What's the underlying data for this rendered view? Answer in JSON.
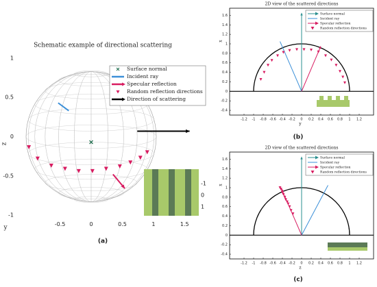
{
  "chart_data": [
    {
      "type": "scatter",
      "title": "Schematic example of directional scattering",
      "xlabel": "y",
      "ylabel": "z",
      "caption": "(a)",
      "xlim": [
        -1.2,
        1.75
      ],
      "ylim": [
        -1.1,
        1.1
      ],
      "xticks": [
        -0.5,
        0,
        0.5,
        1,
        1.5
      ],
      "yticks": [
        -1,
        -0.5,
        0,
        0.5,
        1
      ],
      "inset_ticks": [
        -1,
        0,
        1
      ],
      "series": [
        {
          "name": "Surface normal",
          "color": "#1a6b4a",
          "marker": "x",
          "x": [
            0
          ],
          "values": [
            -0.07
          ]
        },
        {
          "name": "Incident ray",
          "color": "#3a8fd8",
          "marker": "line",
          "x": [
            -0.53,
            -0.36
          ],
          "values": [
            0.43,
            0.33
          ]
        },
        {
          "name": "Specular reflection",
          "color": "#d81b60",
          "marker": "arrow",
          "x": [
            0.35,
            0.54
          ],
          "values": [
            -0.48,
            -0.66
          ]
        },
        {
          "name": "Random reflection directions",
          "color": "#d81b60",
          "marker": "triangle",
          "x": [
            -1.0,
            -0.86,
            -0.64,
            -0.42,
            -0.2,
            0.02,
            0.24,
            0.46,
            0.63,
            0.79,
            0.9
          ],
          "values": [
            -0.135,
            -0.28,
            -0.37,
            -0.41,
            -0.44,
            -0.44,
            -0.41,
            -0.38,
            -0.33,
            -0.27,
            -0.2
          ]
        },
        {
          "name": "Direction of scattering",
          "color": "#000000",
          "marker": "arrow",
          "x": [
            0.74,
            1.58
          ],
          "values": [
            0.07,
            0.07
          ]
        }
      ]
    },
    {
      "type": "scatter",
      "title": "2D view of the scattered directions",
      "xlabel": "y",
      "ylabel": "x",
      "caption": "(b)",
      "xlim": [
        -1.5,
        1.5
      ],
      "ylim": [
        -0.5,
        1.75
      ],
      "arc_radius": 1,
      "xticks": [
        -1.2,
        -1,
        -0.8,
        -0.6,
        -0.4,
        -0.2,
        0,
        0.2,
        0.4,
        0.6,
        0.8,
        1,
        1.2
      ],
      "yticks": [
        -0.4,
        -0.2,
        0,
        0.2,
        0.4,
        0.6,
        0.8,
        1,
        1.2,
        1.4,
        1.6
      ],
      "series": [
        {
          "name": "Surface normal",
          "color": "#2a8f8f",
          "marker": "arrow",
          "x": [
            0,
            0
          ],
          "values": [
            0,
            1.65
          ]
        },
        {
          "name": "Incident ray",
          "color": "#3a8fd8",
          "marker": "line",
          "x": [
            0,
            -0.45
          ],
          "values": [
            0,
            1.05
          ]
        },
        {
          "name": "Specular reflection",
          "color": "#d81b60",
          "marker": "arrow",
          "x": [
            0,
            0.4
          ],
          "values": [
            0,
            0.95
          ]
        },
        {
          "name": "Random reflection directions",
          "color": "#d81b60",
          "marker": "triangle",
          "x": [
            -0.85,
            -0.78,
            -0.7,
            -0.62,
            -0.5,
            -0.38,
            -0.25,
            -0.1,
            0.05,
            0.2,
            0.35,
            0.5,
            0.62,
            0.72,
            0.8,
            0.86,
            0.9
          ],
          "values": [
            0.25,
            0.4,
            0.55,
            0.65,
            0.75,
            0.82,
            0.86,
            0.88,
            0.88,
            0.87,
            0.83,
            0.75,
            0.66,
            0.55,
            0.42,
            0.3,
            0.18
          ]
        }
      ]
    },
    {
      "type": "scatter",
      "title": "2D view of the scattered directions",
      "xlabel": "z",
      "ylabel": "x",
      "caption": "(c)",
      "xlim": [
        -1.5,
        1.5
      ],
      "ylim": [
        -0.5,
        1.75
      ],
      "arc_radius": 1,
      "xticks": [
        -1.2,
        -1,
        -0.8,
        -0.6,
        -0.4,
        -0.2,
        0,
        0.2,
        0.4,
        0.6,
        0.8,
        1,
        1.2
      ],
      "yticks": [
        -0.4,
        -0.2,
        0,
        0.2,
        0.4,
        0.6,
        0.8,
        1,
        1.2,
        1.4,
        1.6
      ],
      "series": [
        {
          "name": "Surface normal",
          "color": "#2a8f8f",
          "marker": "arrow",
          "x": [
            0,
            0
          ],
          "values": [
            0,
            1.65
          ]
        },
        {
          "name": "Incident ray",
          "color": "#3a8fd8",
          "marker": "line",
          "x": [
            0,
            0.55
          ],
          "values": [
            0,
            1.05
          ]
        },
        {
          "name": "Specular reflection",
          "color": "#d81b60",
          "marker": "arrow",
          "x": [
            0,
            -0.42
          ],
          "values": [
            0,
            0.98
          ]
        },
        {
          "name": "Random reflection directions",
          "color": "#d81b60",
          "marker": "triangle",
          "x": [
            -0.18,
            -0.22,
            -0.25,
            -0.28,
            -0.3,
            -0.33,
            -0.35,
            -0.38,
            -0.4,
            -0.43,
            -0.45
          ],
          "values": [
            0.45,
            0.52,
            0.6,
            0.66,
            0.7,
            0.75,
            0.8,
            0.86,
            0.9,
            0.97,
            1.0
          ]
        }
      ]
    }
  ]
}
